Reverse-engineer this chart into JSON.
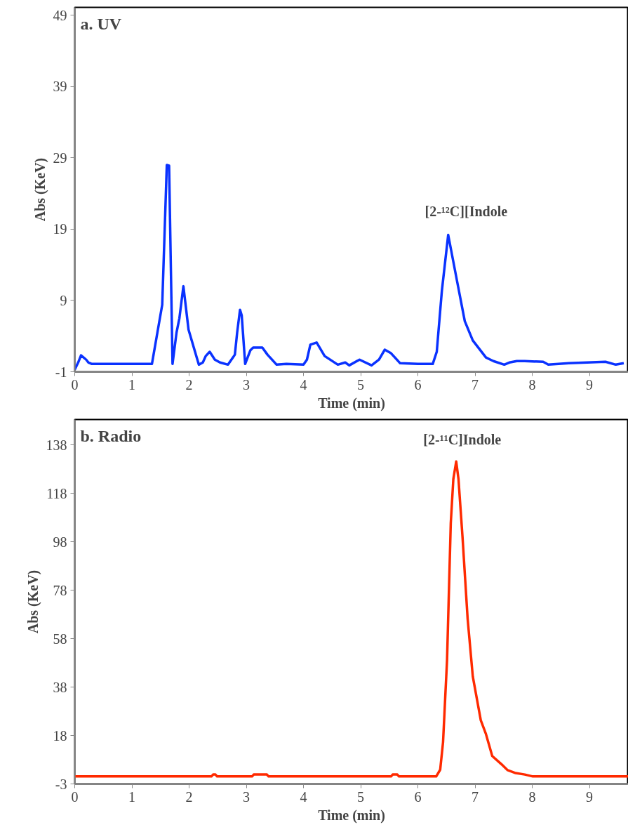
{
  "chart_data": [
    {
      "type": "line",
      "title": "a. UV",
      "xlabel": "Time (min)",
      "ylabel": "Abs (KeV)",
      "grid": false,
      "xlim": [
        0,
        9.68
      ],
      "xticks": [
        0,
        1,
        2,
        3,
        4,
        5,
        6,
        7,
        8,
        9
      ],
      "ylim": [
        -1,
        50.1
      ],
      "yticks": [
        -1,
        9,
        19,
        29,
        39,
        49
      ],
      "series": [
        {
          "color": "#0a32ff",
          "x": [
            0,
            0.06,
            0.11,
            0.2,
            0.24,
            0.3,
            0.6,
            1.0,
            1.35,
            1.53,
            1.61,
            1.65,
            1.71,
            1.78,
            1.83,
            1.9,
            1.99,
            2.17,
            2.24,
            2.29,
            2.36,
            2.45,
            2.54,
            2.68,
            2.8,
            2.84,
            2.89,
            2.92,
            2.98,
            3.07,
            3.12,
            3.28,
            3.37,
            3.53,
            3.7,
            4.0,
            4.06,
            4.12,
            4.23,
            4.37,
            4.6,
            4.73,
            4.8,
            4.98,
            5.19,
            5.32,
            5.42,
            5.53,
            5.69,
            6.0,
            6.26,
            6.33,
            6.42,
            6.53,
            6.69,
            6.82,
            6.96,
            7.19,
            7.32,
            7.51,
            7.6,
            7.73,
            7.87,
            8.19,
            8.28,
            8.64,
            9.28,
            9.46,
            9.6
          ],
          "values": [
            -0.7,
            0.3,
            1.3,
            0.7,
            0.3,
            0.1,
            0.1,
            0.1,
            0.1,
            8.4,
            28.0,
            27.9,
            0.1,
            4.5,
            6.5,
            11.0,
            4.9,
            0.0,
            0.3,
            1.2,
            1.8,
            0.7,
            0.3,
            0.0,
            1.4,
            4.5,
            7.7,
            6.9,
            0.1,
            2.0,
            2.4,
            2.4,
            1.4,
            0.0,
            0.1,
            0.0,
            0.7,
            2.8,
            3.1,
            1.2,
            0.0,
            0.3,
            -0.1,
            0.7,
            -0.1,
            0.7,
            2.1,
            1.6,
            0.2,
            0.1,
            0.1,
            1.8,
            10.4,
            18.2,
            11.5,
            6.1,
            3.4,
            1.0,
            0.5,
            0.0,
            0.3,
            0.5,
            0.5,
            0.4,
            0.0,
            0.2,
            0.4,
            0.0,
            0.2
          ]
        }
      ],
      "annotations": [
        "[2-¹²C][Indole"
      ]
    },
    {
      "type": "line",
      "title": "b. Radio",
      "xlabel": "Time (min)",
      "ylabel": "Abs (KeV)",
      "grid": false,
      "xlim": [
        0,
        9.68
      ],
      "xticks": [
        0,
        1,
        2,
        3,
        4,
        5,
        6,
        7,
        8,
        9
      ],
      "ylim": [
        -2.6,
        148.6
      ],
      "yticks": [
        {
          "value": -2.6,
          "label": "-3"
        },
        {
          "value": 17.5,
          "label": "18"
        },
        {
          "value": 37.6,
          "label": "38"
        },
        {
          "value": 57.7,
          "label": "58"
        },
        {
          "value": 77.8,
          "label": "78"
        },
        {
          "value": 97.9,
          "label": "98"
        },
        {
          "value": 118.0,
          "label": "118"
        },
        {
          "value": 138.1,
          "label": "138"
        }
      ],
      "series": [
        {
          "color": "#ff2a00",
          "x": [
            0,
            2.39,
            2.42,
            2.46,
            2.49,
            3.1,
            3.13,
            3.36,
            3.39,
            5.53,
            5.56,
            5.64,
            5.67,
            6.32,
            6.39,
            6.44,
            6.51,
            6.575,
            6.62,
            6.67,
            6.71,
            6.78,
            6.87,
            6.96,
            7.1,
            7.19,
            7.3,
            7.46,
            7.57,
            7.71,
            7.87,
            8.01,
            9.68
          ],
          "values": [
            0.5,
            0.5,
            1.3,
            1.3,
            0.5,
            0.5,
            1.3,
            1.3,
            0.5,
            0.5,
            1.3,
            1.3,
            0.5,
            0.5,
            3.3,
            14.7,
            48.8,
            105.6,
            123.9,
            131.2,
            123.9,
            100.0,
            65.9,
            42.0,
            23.8,
            18.1,
            9.0,
            5.6,
            3.1,
            1.9,
            1.3,
            0.5,
            0.5
          ]
        }
      ],
      "annotations": [
        "[2-¹¹C]Indole"
      ]
    }
  ]
}
